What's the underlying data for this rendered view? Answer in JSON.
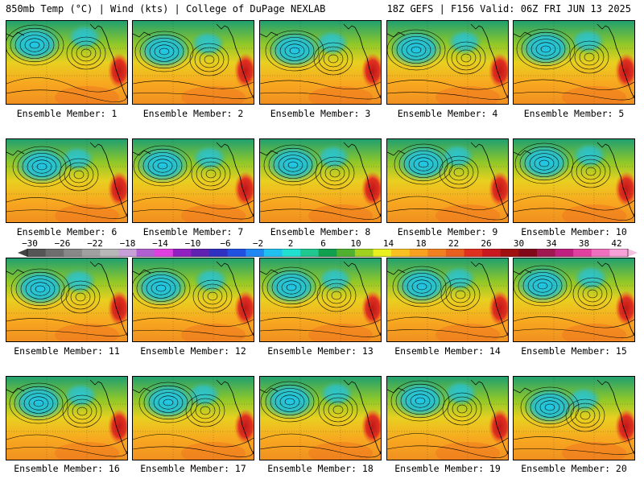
{
  "header": {
    "left_title": "850mb Temp (°C) | Wind (kts) | College of DuPage NEXLAB",
    "right_title": "18Z GEFS | F156 Valid: 06Z FRI JUN 13 2025"
  },
  "members": [
    {
      "label": "Ensemble Member: 1"
    },
    {
      "label": "Ensemble Member: 2"
    },
    {
      "label": "Ensemble Member: 3"
    },
    {
      "label": "Ensemble Member: 4"
    },
    {
      "label": "Ensemble Member: 5"
    },
    {
      "label": "Ensemble Member: 6"
    },
    {
      "label": "Ensemble Member: 7"
    },
    {
      "label": "Ensemble Member: 8"
    },
    {
      "label": "Ensemble Member: 9"
    },
    {
      "label": "Ensemble Member: 10"
    },
    {
      "label": "Ensemble Member: 11"
    },
    {
      "label": "Ensemble Member: 12"
    },
    {
      "label": "Ensemble Member: 13"
    },
    {
      "label": "Ensemble Member: 14"
    },
    {
      "label": "Ensemble Member: 15"
    },
    {
      "label": "Ensemble Member: 16"
    },
    {
      "label": "Ensemble Member: 17"
    },
    {
      "label": "Ensemble Member: 18"
    },
    {
      "label": "Ensemble Member: 19"
    },
    {
      "label": "Ensemble Member: 20"
    }
  ],
  "colorbar": {
    "labels": [
      "−30",
      "−26",
      "−22",
      "−18",
      "−14",
      "−10",
      "−6",
      "−2",
      "2",
      "6",
      "10",
      "14",
      "18",
      "22",
      "26",
      "30",
      "34",
      "38",
      "42"
    ],
    "colors": [
      "#555555",
      "#6e6e6e",
      "#888888",
      "#a0a0a0",
      "#b8b8b8",
      "#c8a0d8",
      "#b060d0",
      "#e040e0",
      "#9020c0",
      "#6020b0",
      "#3030c0",
      "#2050e0",
      "#2088f0",
      "#20c0f0",
      "#20e0d0",
      "#20c890",
      "#10a050",
      "#50b030",
      "#a0d020",
      "#e8f020",
      "#f8c020",
      "#f8a020",
      "#f08020",
      "#e86020",
      "#e03020",
      "#c81820",
      "#a01010",
      "#800818",
      "#a01850",
      "#c02080",
      "#e040a0",
      "#f070c0",
      "#f8a0d8"
    ]
  }
}
